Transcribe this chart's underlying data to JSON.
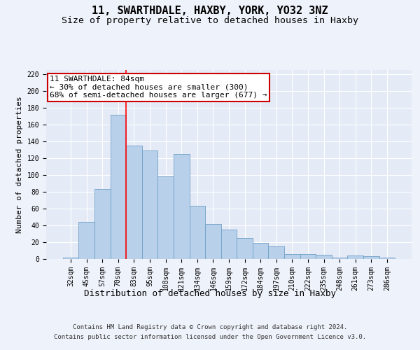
{
  "title1": "11, SWARTHDALE, HAXBY, YORK, YO32 3NZ",
  "title2": "Size of property relative to detached houses in Haxby",
  "xlabel": "Distribution of detached houses by size in Haxby",
  "ylabel": "Number of detached properties",
  "categories": [
    "32sqm",
    "45sqm",
    "57sqm",
    "70sqm",
    "83sqm",
    "95sqm",
    "108sqm",
    "121sqm",
    "134sqm",
    "146sqm",
    "159sqm",
    "172sqm",
    "184sqm",
    "197sqm",
    "210sqm",
    "222sqm",
    "235sqm",
    "248sqm",
    "261sqm",
    "273sqm",
    "286sqm"
  ],
  "values": [
    2,
    44,
    83,
    172,
    135,
    129,
    98,
    125,
    63,
    42,
    35,
    25,
    19,
    15,
    6,
    6,
    5,
    2,
    4,
    3,
    2
  ],
  "bar_color": "#b8d0ea",
  "bar_edge_color": "#6fa0c8",
  "red_line_x": 3.5,
  "annotation_text": "11 SWARTHDALE: 84sqm\n← 30% of detached houses are smaller (300)\n68% of semi-detached houses are larger (677) →",
  "annotation_box_color": "#ffffff",
  "annotation_box_edge": "#cc0000",
  "ylim": [
    0,
    225
  ],
  "yticks": [
    0,
    20,
    40,
    60,
    80,
    100,
    120,
    140,
    160,
    180,
    200,
    220
  ],
  "background_color": "#eef2fa",
  "plot_bg_color": "#e4eaf6",
  "grid_color": "#ffffff",
  "footer1": "Contains HM Land Registry data © Crown copyright and database right 2024.",
  "footer2": "Contains public sector information licensed under the Open Government Licence v3.0.",
  "title_fontsize": 11,
  "subtitle_fontsize": 9.5,
  "xlabel_fontsize": 9,
  "ylabel_fontsize": 8,
  "tick_fontsize": 7,
  "annotation_fontsize": 8,
  "footer_fontsize": 6.5
}
